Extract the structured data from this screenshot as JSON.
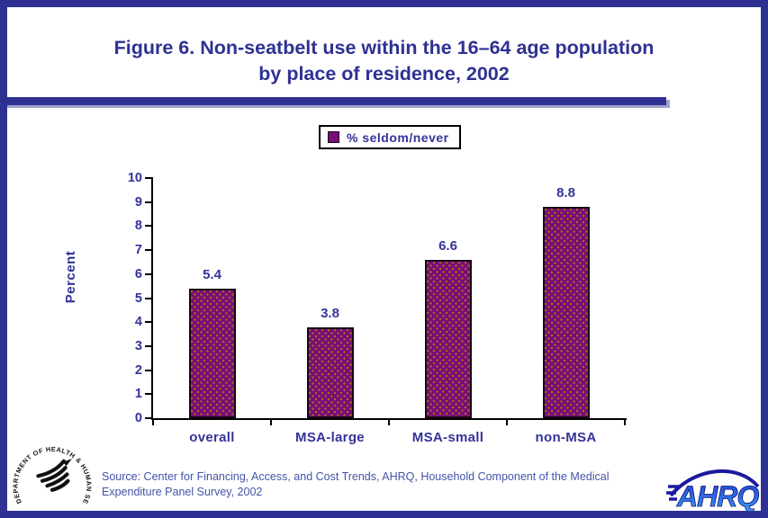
{
  "page": {
    "background": "#ffffff",
    "frame_color": "#2e3192"
  },
  "title": {
    "line1": "Figure 6. Non-seatbelt use within the 16–64 age population",
    "line2": "by place of residence, 2002"
  },
  "legend": {
    "label": "% seldom/never"
  },
  "chart_data": {
    "type": "bar",
    "title": "Figure 6. Non-seatbelt use within the 16–64 age population by place of residence, 2002",
    "categories": [
      "overall",
      "MSA-large",
      "MSA-small",
      "non-MSA"
    ],
    "values": [
      5.4,
      3.8,
      6.6,
      8.8
    ],
    "series": [
      {
        "name": "% seldom/never",
        "values": [
          5.4,
          3.8,
          6.6,
          8.8
        ]
      }
    ],
    "xlabel": "",
    "ylabel": "Percent",
    "ylim": [
      0,
      10
    ],
    "ytick_step": 1,
    "grid": false,
    "legend_position": "top-center",
    "data_labels": true,
    "bar_color": "#7a0c7a",
    "text_color": "#333399"
  },
  "source": {
    "line1": "Source: Center for Financing, Access, and Cost Trends, AHRQ, Household Component of the Medical",
    "line2": "Expenditure Panel Survey, 2002"
  },
  "footer": {
    "hhs_ring_text": "DEPARTMENT OF HEALTH & HUMAN SERVICES·USA",
    "ahrq_text": "AHRQ"
  }
}
